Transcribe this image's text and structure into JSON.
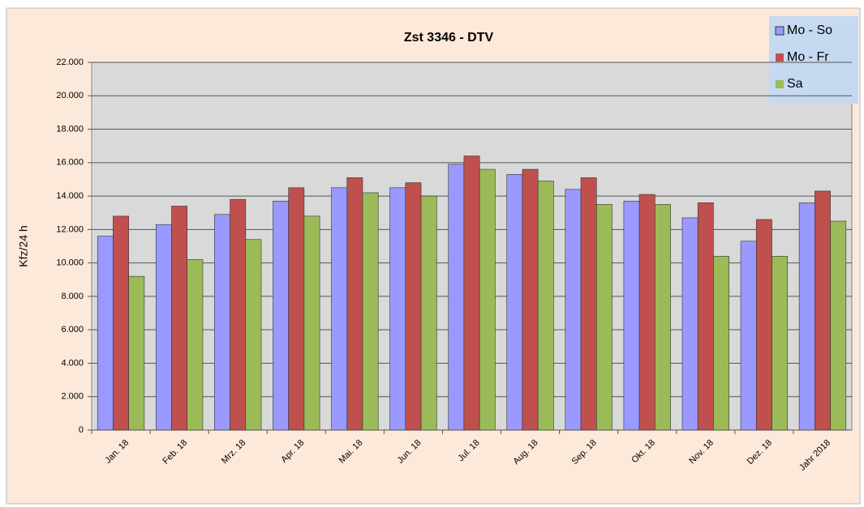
{
  "chart_data": {
    "type": "bar",
    "title": "Zst 3346 - DTV",
    "y_label": "Kfz/24 h",
    "categories": [
      "Jan. 18",
      "Feb. 18",
      "Mrz. 18",
      "Apr. 18",
      "Mai. 18",
      "Jun. 18",
      "Jul. 18",
      "Aug. 18",
      "Sep. 18",
      "Okt. 18",
      "Nov. 18",
      "Dez. 18",
      "Jahr 2018"
    ],
    "series": [
      {
        "name": "Mo - So",
        "color": "#9999ff",
        "values": [
          11600,
          12300,
          12900,
          13700,
          14500,
          14500,
          15900,
          15300,
          14400,
          13700,
          12700,
          11300,
          13600
        ]
      },
      {
        "name": "Mo - Fr",
        "color": "#c0504d",
        "values": [
          12800,
          13400,
          13800,
          14500,
          15100,
          14800,
          16400,
          15600,
          15100,
          14100,
          13600,
          12600,
          14300
        ]
      },
      {
        "name": "Sa",
        "color": "#9bbb59",
        "values": [
          9200,
          10200,
          11400,
          12800,
          14200,
          14000,
          15600,
          14900,
          13500,
          13500,
          10400,
          10400,
          12500
        ]
      }
    ],
    "ylim": [
      0,
      22000
    ],
    "yticks": [
      0,
      {
        "value": 2000,
        "label": "2.000"
      },
      {
        "value": 4000,
        "label": "4.000"
      },
      {
        "value": 6000,
        "label": "6.000"
      },
      {
        "value": 8000,
        "label": "8.000"
      },
      {
        "value": 10000,
        "label": "10.000"
      },
      {
        "value": 12000,
        "label": "12.000"
      },
      {
        "value": 14000,
        "label": "14.000"
      },
      {
        "value": 16000,
        "label": "16.000"
      },
      {
        "value": 18000,
        "label": "18.000"
      },
      {
        "value": 20000,
        "label": "20.000"
      },
      {
        "value": 22000,
        "label": "22.000"
      }
    ],
    "grid": true,
    "legend": "top-right"
  }
}
